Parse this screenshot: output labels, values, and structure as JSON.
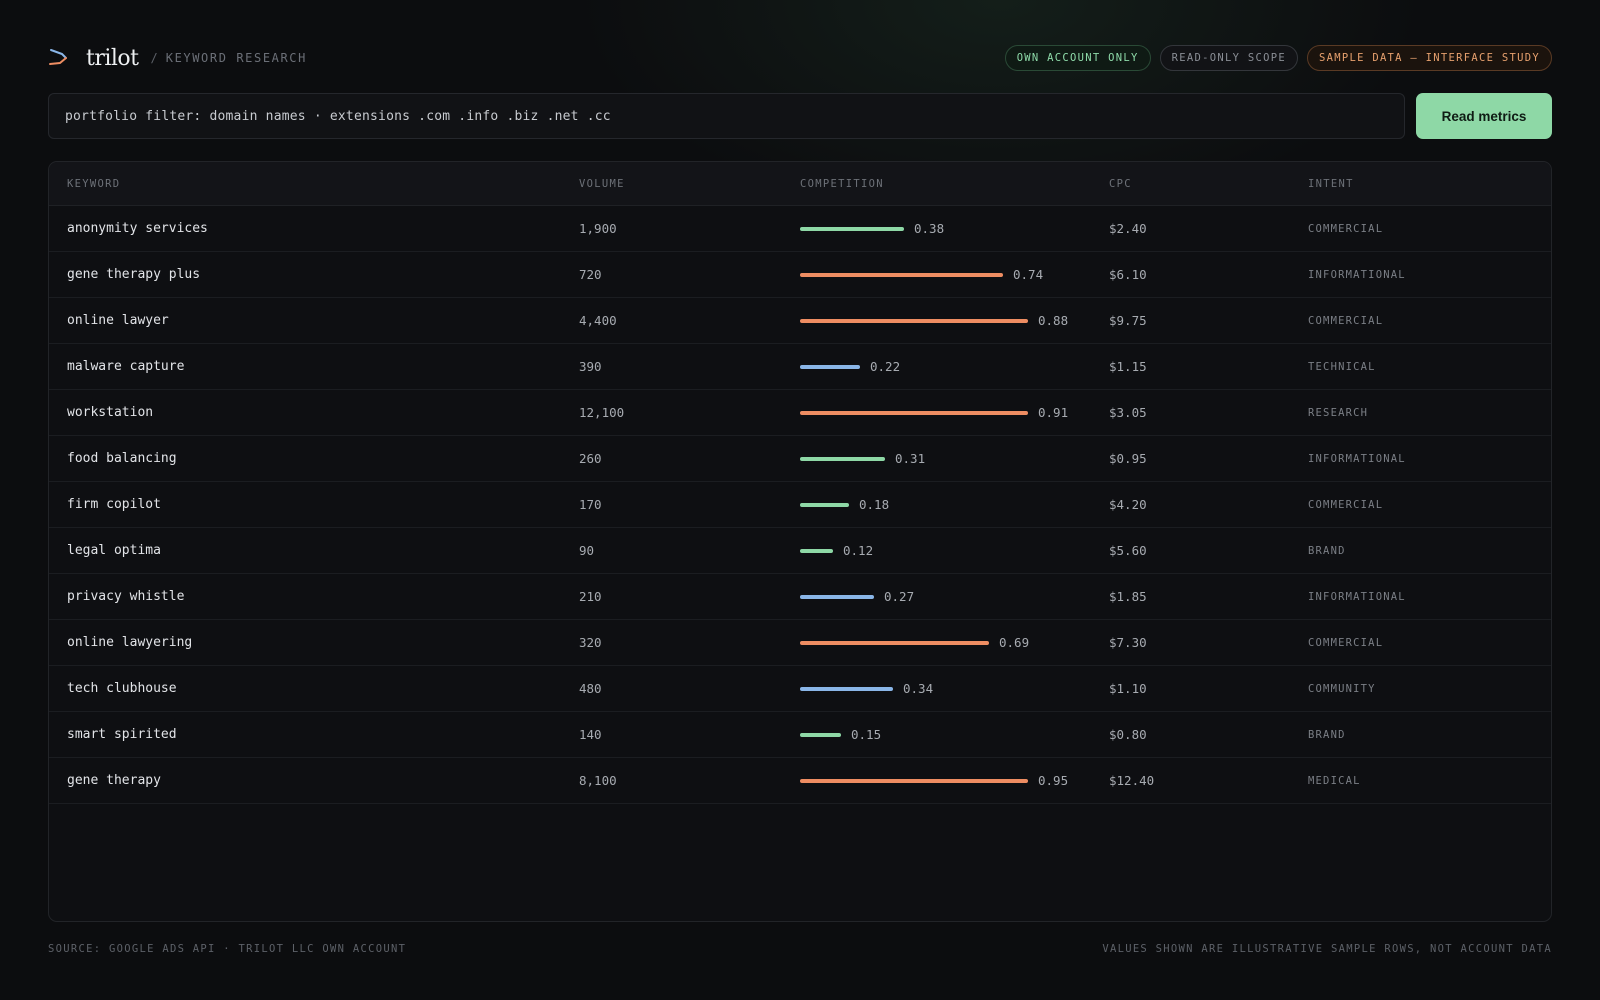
{
  "app": {
    "name": "trilot",
    "crumb_separator": "/",
    "section": "KEYWORD RESEARCH",
    "logo_icon": "chevron-arrow-logo"
  },
  "badges": [
    {
      "label": "OWN ACCOUNT ONLY",
      "tone": "green"
    },
    {
      "label": "READ-ONLY SCOPE",
      "tone": "grey"
    },
    {
      "label": "SAMPLE DATA — INTERFACE STUDY",
      "tone": "orange"
    }
  ],
  "filter": {
    "value": "portfolio filter: domain names · extensions .com .info .biz .net .cc",
    "button_label": "Read metrics"
  },
  "table": {
    "columns": [
      "KEYWORD",
      "VOLUME",
      "COMPETITION",
      "CPC",
      "INTENT"
    ],
    "rows": [
      {
        "keyword": "anonymity services",
        "volume": "1,900",
        "competition": 0.38,
        "competition_label": "0.38",
        "bar_color": "green",
        "cpc": "$2.40",
        "intent": "COMMERCIAL"
      },
      {
        "keyword": "gene therapy plus",
        "volume": "720",
        "competition": 0.74,
        "competition_label": "0.74",
        "bar_color": "orange",
        "cpc": "$6.10",
        "intent": "INFORMATIONAL"
      },
      {
        "keyword": "online lawyer",
        "volume": "4,400",
        "competition": 0.88,
        "competition_label": "0.88",
        "bar_color": "orange",
        "cpc": "$9.75",
        "intent": "COMMERCIAL"
      },
      {
        "keyword": "malware capture",
        "volume": "390",
        "competition": 0.22,
        "competition_label": "0.22",
        "bar_color": "blue",
        "cpc": "$1.15",
        "intent": "TECHNICAL"
      },
      {
        "keyword": "workstation",
        "volume": "12,100",
        "competition": 0.91,
        "competition_label": "0.91",
        "bar_color": "orange",
        "cpc": "$3.05",
        "intent": "RESEARCH"
      },
      {
        "keyword": "food balancing",
        "volume": "260",
        "competition": 0.31,
        "competition_label": "0.31",
        "bar_color": "green",
        "cpc": "$0.95",
        "intent": "INFORMATIONAL"
      },
      {
        "keyword": "firm copilot",
        "volume": "170",
        "competition": 0.18,
        "competition_label": "0.18",
        "bar_color": "green",
        "cpc": "$4.20",
        "intent": "COMMERCIAL"
      },
      {
        "keyword": "legal optima",
        "volume": "90",
        "competition": 0.12,
        "competition_label": "0.12",
        "bar_color": "green",
        "cpc": "$5.60",
        "intent": "BRAND"
      },
      {
        "keyword": "privacy whistle",
        "volume": "210",
        "competition": 0.27,
        "competition_label": "0.27",
        "bar_color": "blue",
        "cpc": "$1.85",
        "intent": "INFORMATIONAL"
      },
      {
        "keyword": "online lawyering",
        "volume": "320",
        "competition": 0.69,
        "competition_label": "0.69",
        "bar_color": "orange",
        "cpc": "$7.30",
        "intent": "COMMERCIAL"
      },
      {
        "keyword": "tech clubhouse",
        "volume": "480",
        "competition": 0.34,
        "competition_label": "0.34",
        "bar_color": "blue",
        "cpc": "$1.10",
        "intent": "COMMUNITY"
      },
      {
        "keyword": "smart spirited",
        "volume": "140",
        "competition": 0.15,
        "competition_label": "0.15",
        "bar_color": "green",
        "cpc": "$0.80",
        "intent": "BRAND"
      },
      {
        "keyword": "gene therapy",
        "volume": "8,100",
        "competition": 0.95,
        "competition_label": "0.95",
        "bar_color": "orange",
        "cpc": "$12.40",
        "intent": "MEDICAL"
      }
    ]
  },
  "footer": {
    "left": "SOURCE: GOOGLE ADS API · TRILOT LLC OWN ACCOUNT",
    "right": "VALUES SHOWN ARE ILLUSTRATIVE SAMPLE ROWS, NOT ACCOUNT DATA"
  },
  "colors": {
    "accent_green": "#8ed8a6",
    "bar_orange": "#ee8d62",
    "bar_blue": "#8ab6e8",
    "background": "#0c0d0f"
  }
}
